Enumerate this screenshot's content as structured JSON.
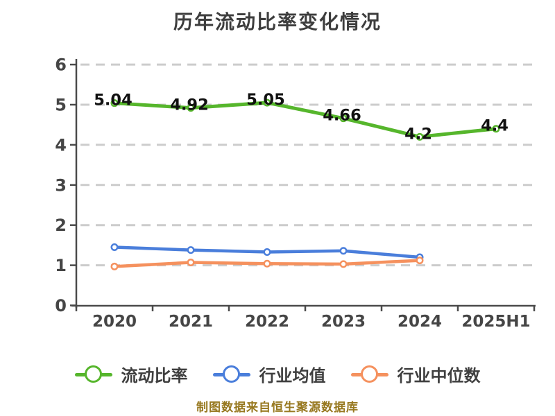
{
  "caption": "制图数据来自恒生聚源数据库",
  "colors": {
    "background": "#ffffff",
    "title_text": "#3d3d3d",
    "axis": "#4a4a4a",
    "grid": "#cccccc",
    "tick_label": "#454545",
    "data_label": "#111111",
    "legend_label": "#3f3f3f",
    "caption_text": "#97781f"
  },
  "chart_data": {
    "type": "line",
    "title": "历年流动比率变化情况",
    "categories": [
      "2020",
      "2021",
      "2022",
      "2023",
      "2024",
      "2025H1"
    ],
    "series": [
      {
        "name": "流动比率",
        "color": "#56b62c",
        "values": [
          5.04,
          4.92,
          5.05,
          4.66,
          4.2,
          4.4
        ],
        "labels": [
          "5.04",
          "4.92",
          "5.05",
          "4.66",
          "4.2",
          "4.4"
        ],
        "show_labels": true
      },
      {
        "name": "行业均值",
        "color": "#4a7edb",
        "values": [
          1.45,
          1.38,
          1.33,
          1.36,
          1.2,
          null
        ],
        "show_labels": false
      },
      {
        "name": "行业中位数",
        "color": "#f5915e",
        "values": [
          0.97,
          1.07,
          1.04,
          1.03,
          1.12,
          null
        ],
        "show_labels": false
      }
    ],
    "xlabel": "",
    "ylabel": "",
    "ylim": [
      0,
      6
    ],
    "y_ticks": [
      0,
      1,
      2,
      3,
      4,
      5,
      6
    ],
    "grid": "horizontal-dashed",
    "legend_position": "bottom"
  }
}
